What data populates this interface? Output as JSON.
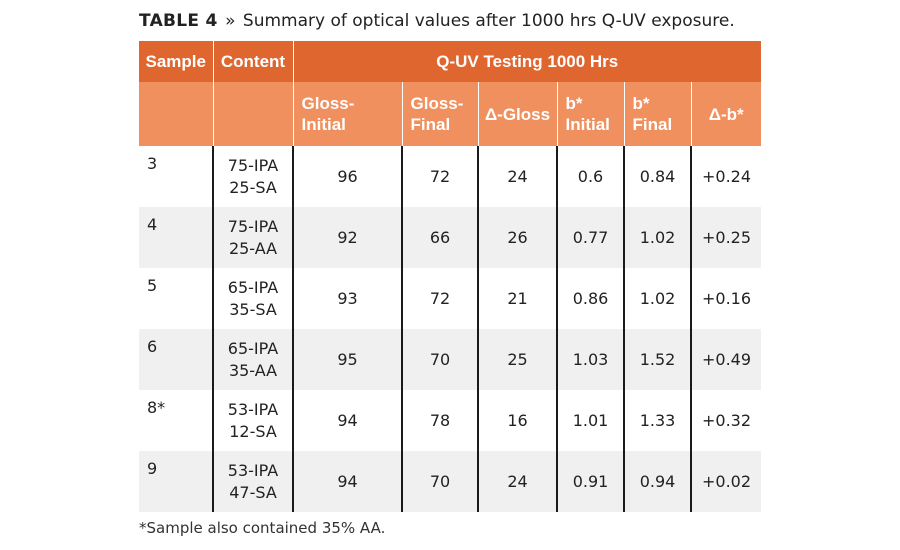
{
  "caption": {
    "label": "TABLE 4",
    "separator": "»",
    "text": "Summary of optical values after 1000 hrs Q-UV exposure."
  },
  "header": {
    "sample": "Sample",
    "content": "Content",
    "group": "Q-UV Testing 1000 Hrs",
    "columns": [
      [
        "Gloss-",
        "Initial"
      ],
      [
        "Gloss-",
        "Final"
      ],
      [
        "Δ-Gloss"
      ],
      [
        "b*",
        "Initial"
      ],
      [
        "b*",
        "Final"
      ],
      [
        "Δ-b*"
      ]
    ]
  },
  "rows": [
    {
      "sample": "3",
      "content": [
        "75-IPA",
        "25-SA"
      ],
      "gloss_initial": "96",
      "gloss_final": "72",
      "delta_gloss": "24",
      "b_initial": "0.6",
      "b_final": "0.84",
      "delta_b": "+0.24"
    },
    {
      "sample": "4",
      "content": [
        "75-IPA",
        "25-AA"
      ],
      "gloss_initial": "92",
      "gloss_final": "66",
      "delta_gloss": "26",
      "b_initial": "0.77",
      "b_final": "1.02",
      "delta_b": "+0.25"
    },
    {
      "sample": "5",
      "content": [
        "65-IPA",
        "35-SA"
      ],
      "gloss_initial": "93",
      "gloss_final": "72",
      "delta_gloss": "21",
      "b_initial": "0.86",
      "b_final": "1.02",
      "delta_b": "+0.16"
    },
    {
      "sample": "6",
      "content": [
        "65-IPA",
        "35-AA"
      ],
      "gloss_initial": "95",
      "gloss_final": "70",
      "delta_gloss": "25",
      "b_initial": "1.03",
      "b_final": "1.52",
      "delta_b": "+0.49"
    },
    {
      "sample": "8*",
      "content": [
        "53-IPA",
        "12-SA"
      ],
      "gloss_initial": "94",
      "gloss_final": "78",
      "delta_gloss": "16",
      "b_initial": "1.01",
      "b_final": "1.33",
      "delta_b": "+0.32"
    },
    {
      "sample": "9",
      "content": [
        "53-IPA",
        "47-SA"
      ],
      "gloss_initial": "94",
      "gloss_final": "70",
      "delta_gloss": "24",
      "b_initial": "0.91",
      "b_final": "0.94",
      "delta_b": "+0.02"
    }
  ],
  "footnote": "*Sample also contained 35% AA."
}
